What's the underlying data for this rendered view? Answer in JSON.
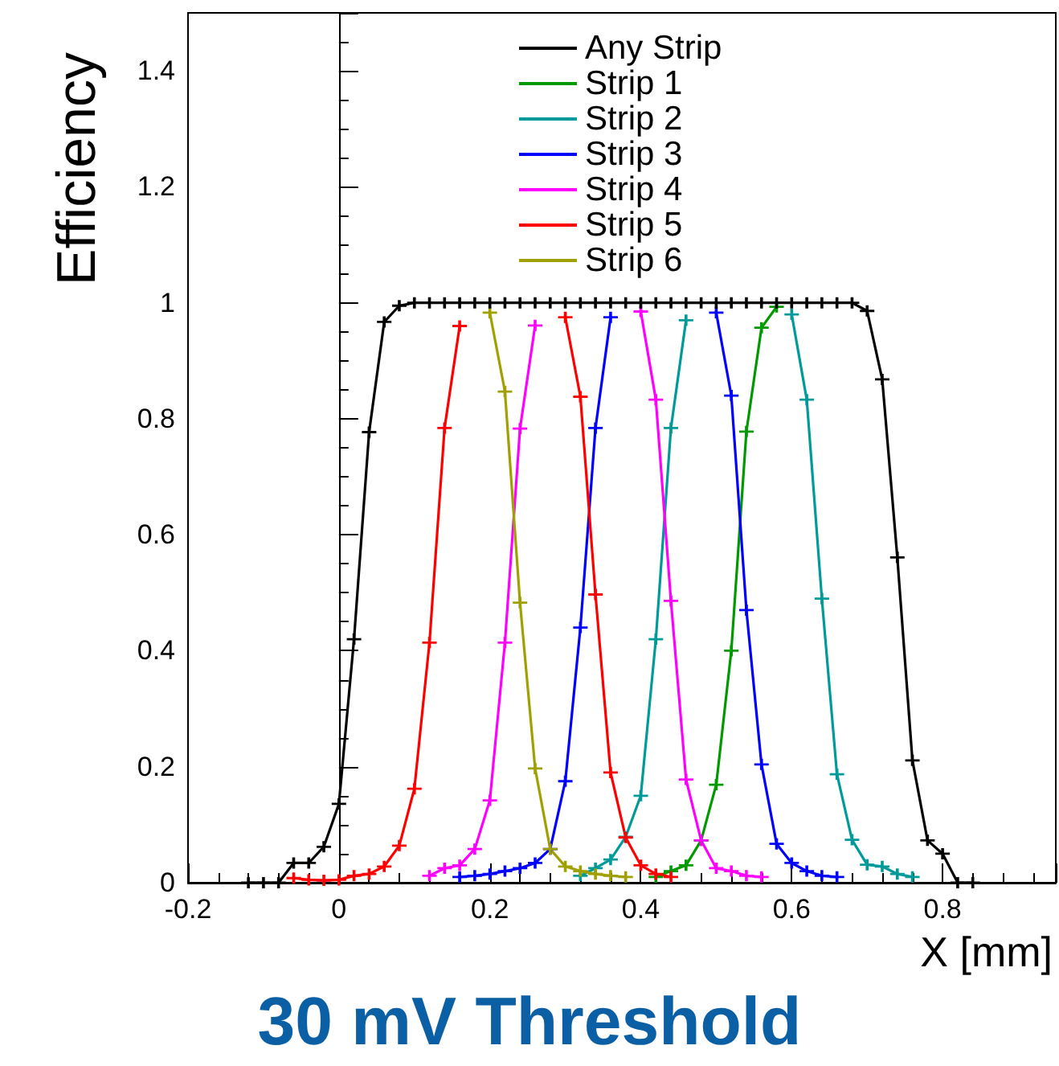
{
  "chart_data": {
    "type": "line",
    "title": "30 mV Threshold",
    "xlabel": "X [mm]",
    "ylabel": "Efficiency",
    "x": [
      -0.12,
      -0.1,
      -0.08,
      -0.06,
      -0.04,
      -0.02,
      0,
      0.02,
      0.04,
      0.06,
      0.08,
      0.1,
      0.12,
      0.14,
      0.16,
      0.18,
      0.2,
      0.22,
      0.24,
      0.26,
      0.28,
      0.3,
      0.32,
      0.34,
      0.36,
      0.38,
      0.4,
      0.42,
      0.44,
      0.46,
      0.48,
      0.5,
      0.52,
      0.54,
      0.56,
      0.58,
      0.6,
      0.62,
      0.64,
      0.66,
      0.68,
      0.7,
      0.72,
      0.74,
      0.76,
      0.78,
      0.8,
      0.82,
      0.84
    ],
    "series": [
      {
        "name": "Any Strip",
        "color": "#000000",
        "values": [
          0,
          0,
          0,
          0.034,
          0.034,
          0.062,
          0.136,
          0.42,
          0.777,
          0.967,
          0.995,
          1,
          1,
          1,
          1,
          1,
          1,
          1,
          1,
          1,
          1,
          1,
          1,
          1,
          1,
          1,
          1,
          1,
          1,
          1,
          1,
          1,
          1,
          1,
          1,
          1,
          1,
          1,
          1,
          1,
          1,
          0.986,
          0.868,
          0.561,
          0.211,
          0.073,
          0.05,
          0,
          0
        ]
      },
      {
        "name": "Strip 1",
        "color": "#009a00",
        "values": [
          null,
          null,
          null,
          null,
          null,
          null,
          null,
          null,
          null,
          null,
          null,
          null,
          null,
          null,
          null,
          null,
          null,
          null,
          null,
          null,
          null,
          null,
          null,
          null,
          null,
          null,
          null,
          0.01,
          0.02,
          0.03,
          0.073,
          0.169,
          0.4,
          0.778,
          0.957,
          0.993,
          null,
          null,
          null,
          null,
          null,
          null,
          null,
          null,
          null,
          null,
          null,
          null,
          null
        ]
      },
      {
        "name": "Strip 2",
        "color": "#009a9a",
        "values": [
          null,
          null,
          null,
          null,
          null,
          null,
          null,
          null,
          null,
          null,
          null,
          null,
          null,
          null,
          null,
          null,
          null,
          null,
          null,
          null,
          null,
          null,
          0.012,
          0.025,
          0.04,
          0.079,
          0.15,
          0.42,
          0.784,
          0.97,
          null,
          null,
          null,
          null,
          null,
          null,
          0.98,
          0.833,
          0.49,
          0.187,
          0.074,
          0.031,
          0.028,
          0.015,
          0.01,
          null,
          null,
          null,
          null
        ]
      },
      {
        "name": "Strip 3",
        "color": "#0000ff",
        "values": [
          null,
          null,
          null,
          null,
          null,
          null,
          null,
          null,
          null,
          null,
          null,
          null,
          null,
          null,
          0.01,
          0.012,
          0.015,
          0.02,
          0.025,
          0.034,
          0.058,
          0.175,
          0.44,
          0.784,
          0.975,
          null,
          null,
          null,
          null,
          null,
          null,
          0.983,
          0.84,
          0.47,
          0.204,
          0.067,
          0.034,
          0.02,
          0.012,
          0.01,
          null,
          null,
          null,
          null,
          null,
          null,
          null,
          null,
          null
        ]
      },
      {
        "name": "Strip 4",
        "color": "#ff00ff",
        "values": [
          null,
          null,
          null,
          null,
          null,
          null,
          null,
          null,
          null,
          null,
          null,
          null,
          0.012,
          0.025,
          0.03,
          0.058,
          0.142,
          0.414,
          0.783,
          0.961,
          null,
          null,
          null,
          null,
          null,
          null,
          0.985,
          0.833,
          0.486,
          0.178,
          0.073,
          0.025,
          0.02,
          0.012,
          0.01,
          null,
          null,
          null,
          null,
          null,
          null,
          null,
          null,
          null,
          null,
          null,
          null,
          null,
          null
        ]
      },
      {
        "name": "Strip 5",
        "color": "#ff0000",
        "values": [
          null,
          null,
          null,
          0.008,
          0.005,
          0.004,
          0.005,
          0.012,
          0.015,
          0.028,
          0.064,
          0.162,
          0.414,
          0.784,
          0.96,
          null,
          null,
          null,
          null,
          null,
          null,
          0.975,
          0.838,
          0.497,
          0.19,
          0.078,
          0.03,
          0.015,
          0.01,
          null,
          null,
          null,
          null,
          null,
          null,
          null,
          null,
          null,
          null,
          null,
          null,
          null,
          null,
          null,
          null,
          null,
          null,
          null,
          null
        ]
      },
      {
        "name": "Strip 6",
        "color": "#a0a000",
        "values": [
          null,
          null,
          null,
          null,
          null,
          null,
          null,
          null,
          null,
          null,
          null,
          null,
          null,
          null,
          null,
          null,
          0.983,
          0.847,
          0.483,
          0.197,
          0.058,
          0.028,
          0.02,
          0.015,
          0.012,
          0.01,
          null,
          null,
          null,
          null,
          null,
          null,
          null,
          null,
          null,
          null,
          null,
          null,
          null,
          null,
          null,
          null,
          null,
          null,
          null,
          null,
          null,
          null,
          null
        ]
      }
    ],
    "xlim": [
      -0.2,
      0.95
    ],
    "xticks": [
      -0.2,
      0,
      0.2,
      0.4,
      0.6,
      0.8
    ],
    "ylim": [
      0,
      1.5
    ],
    "yticks": [
      0,
      0.2,
      0.4,
      0.6,
      0.8,
      1,
      1.2,
      1.4
    ],
    "legend": "top",
    "marker": "cross",
    "line_style": "solid"
  }
}
